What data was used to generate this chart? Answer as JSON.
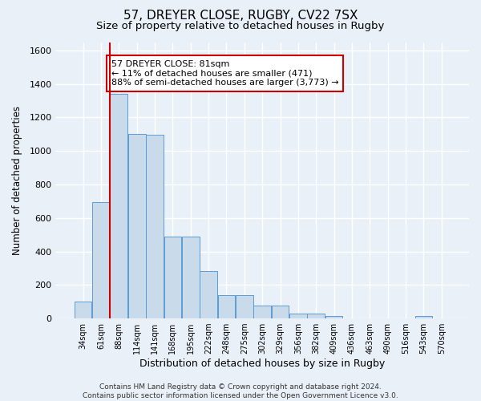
{
  "title": "57, DREYER CLOSE, RUGBY, CV22 7SX",
  "subtitle": "Size of property relative to detached houses in Rugby",
  "xlabel": "Distribution of detached houses by size in Rugby",
  "ylabel": "Number of detached properties",
  "bin_labels": [
    "34sqm",
    "61sqm",
    "88sqm",
    "114sqm",
    "141sqm",
    "168sqm",
    "195sqm",
    "222sqm",
    "248sqm",
    "275sqm",
    "302sqm",
    "329sqm",
    "356sqm",
    "382sqm",
    "409sqm",
    "436sqm",
    "463sqm",
    "490sqm",
    "516sqm",
    "543sqm",
    "570sqm"
  ],
  "bar_heights": [
    100,
    695,
    1340,
    1100,
    1095,
    490,
    490,
    285,
    140,
    140,
    75,
    75,
    30,
    30,
    15,
    0,
    0,
    0,
    0,
    15,
    0
  ],
  "bar_color": "#c9daea",
  "bar_edge_color": "#5b9bd5",
  "red_line_index": 2,
  "annotation_line1": "57 DREYER CLOSE: 81sqm",
  "annotation_line2": "← 11% of detached houses are smaller (471)",
  "annotation_line3": "88% of semi-detached houses are larger (3,773) →",
  "annotation_box_color": "#ffffff",
  "annotation_box_edge": "#cc0000",
  "ylim": [
    0,
    1650
  ],
  "yticks": [
    0,
    200,
    400,
    600,
    800,
    1000,
    1200,
    1400,
    1600
  ],
  "footer": "Contains HM Land Registry data © Crown copyright and database right 2024.\nContains public sector information licensed under the Open Government Licence v3.0.",
  "bg_color": "#eaf0f8",
  "plot_bg_color": "#eaf0f8",
  "grid_color": "#ffffff",
  "title_fontsize": 11,
  "subtitle_fontsize": 9.5
}
